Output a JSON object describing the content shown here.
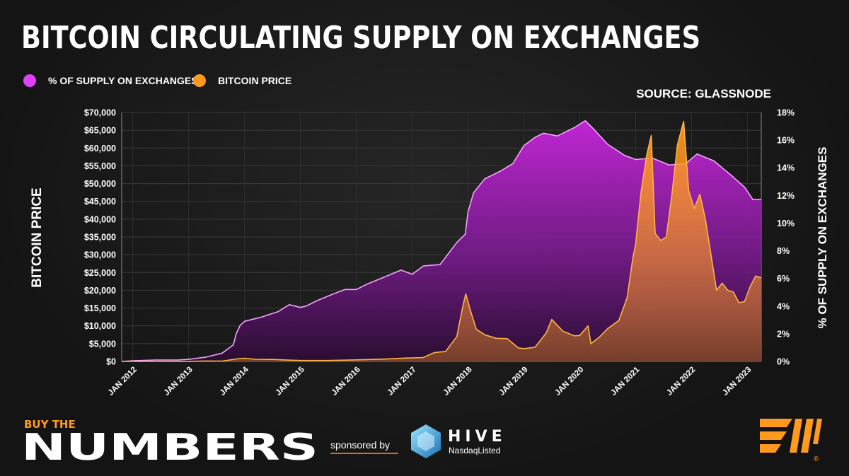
{
  "header": {
    "title": "BITCOIN CIRCULATING SUPPLY ON EXCHANGES",
    "source": "SOURCE: GLASSNODE"
  },
  "legend": {
    "items": [
      {
        "label": "% OF SUPPLY ON EXCHANGES",
        "color": "#e040fb",
        "icon": "circle-dot"
      },
      {
        "label": "BITCOIN PRICE",
        "color": "#ff9a1f",
        "icon": "circle-dot"
      }
    ]
  },
  "footer": {
    "brand_top": "BUY THE",
    "brand_bottom": "NUMBERS",
    "sponsored_by": "sponsored by",
    "sponsor_name": "HIVE",
    "sponsor_sub": "NasdaqListed",
    "logo_icon": "bitcoin-magazine-logo",
    "registered": "®"
  },
  "chart_data": {
    "type": "area",
    "title": "BITCOIN CIRCULATING SUPPLY ON EXCHANGES",
    "ylabel_left": "BITCOIN PRICE",
    "ylabel_right": "% OF SUPPLY ON EXCHANGES",
    "ylim_left": [
      0,
      70000
    ],
    "ylim_right": [
      0,
      18
    ],
    "y_ticks_left": [
      "$0",
      "$5,000",
      "$10,000",
      "$15,000",
      "$20,000",
      "$25,000",
      "$30,000",
      "$35,000",
      "$40,000",
      "$45,000",
      "$50,000",
      "$55,000",
      "$60,000",
      "$65,000",
      "$70,000"
    ],
    "y_ticks_right": [
      "0%",
      "2%",
      "4%",
      "6%",
      "8%",
      "10%",
      "12%",
      "14%",
      "16%",
      "18%"
    ],
    "x_ticks": [
      "JAN 2012",
      "JAN 2013",
      "JAN 2014",
      "JAN 2015",
      "JAN 2016",
      "JAN 2017",
      "JAN 2018",
      "JAN 2019",
      "JAN 2020",
      "JAN 2021",
      "JAN 2022",
      "JAN 2023"
    ],
    "xlim": [
      2011.8,
      2023.25
    ],
    "grid": true,
    "series": [
      {
        "name": "% OF SUPPLY ON EXCHANGES",
        "axis": "right",
        "color": "#e040fb",
        "x": [
          2011.8,
          2012.0,
          2012.4,
          2012.8,
          2013.0,
          2013.3,
          2013.6,
          2013.8,
          2013.85,
          2013.92,
          2014.0,
          2014.1,
          2014.3,
          2014.6,
          2014.8,
          2015.0,
          2015.1,
          2015.3,
          2015.6,
          2015.8,
          2016.0,
          2016.2,
          2016.5,
          2016.8,
          2017.0,
          2017.2,
          2017.5,
          2017.8,
          2017.95,
          2018.0,
          2018.1,
          2018.3,
          2018.6,
          2018.8,
          2019.0,
          2019.2,
          2019.35,
          2019.6,
          2019.9,
          2020.1,
          2020.25,
          2020.5,
          2020.8,
          2021.0,
          2021.3,
          2021.6,
          2021.9,
          2022.1,
          2022.4,
          2022.7,
          2022.95,
          2023.1,
          2023.25
        ],
        "values": [
          0.0,
          0.05,
          0.1,
          0.1,
          0.15,
          0.3,
          0.6,
          1.2,
          2.0,
          2.6,
          2.9,
          3.0,
          3.2,
          3.6,
          4.1,
          3.9,
          4.0,
          4.4,
          4.9,
          5.2,
          5.2,
          5.6,
          6.1,
          6.6,
          6.3,
          6.9,
          7.0,
          8.6,
          9.2,
          10.8,
          12.2,
          13.2,
          13.8,
          14.3,
          15.6,
          16.2,
          16.5,
          16.3,
          16.9,
          17.4,
          16.8,
          15.7,
          14.9,
          14.6,
          14.7,
          14.2,
          14.3,
          15.0,
          14.5,
          13.5,
          12.6,
          11.7,
          11.7
        ]
      },
      {
        "name": "BITCOIN PRICE",
        "axis": "left",
        "color": "#ff9a1f",
        "x": [
          2011.8,
          2012.0,
          2012.5,
          2013.0,
          2013.3,
          2013.6,
          2013.9,
          2014.0,
          2014.2,
          2014.5,
          2014.8,
          2015.0,
          2015.5,
          2016.0,
          2016.5,
          2016.9,
          2017.0,
          2017.2,
          2017.4,
          2017.6,
          2017.8,
          2017.9,
          2017.96,
          2018.05,
          2018.15,
          2018.3,
          2018.5,
          2018.7,
          2018.9,
          2019.0,
          2019.2,
          2019.4,
          2019.5,
          2019.7,
          2019.9,
          2020.0,
          2020.15,
          2020.2,
          2020.35,
          2020.5,
          2020.7,
          2020.85,
          2020.95,
          2021.0,
          2021.1,
          2021.2,
          2021.28,
          2021.35,
          2021.45,
          2021.55,
          2021.65,
          2021.75,
          2021.86,
          2021.95,
          2022.05,
          2022.15,
          2022.25,
          2022.35,
          2022.45,
          2022.55,
          2022.65,
          2022.75,
          2022.85,
          2022.95,
          2023.05,
          2023.15,
          2023.25
        ],
        "values": [
          0,
          5,
          10,
          20,
          120,
          100,
          800,
          900,
          600,
          550,
          350,
          250,
          260,
          430,
          650,
          950,
          1000,
          1100,
          2500,
          2800,
          7000,
          15000,
          19000,
          14000,
          9000,
          7500,
          6500,
          6400,
          3800,
          3600,
          4000,
          8000,
          11800,
          8500,
          7200,
          7300,
          10000,
          5000,
          6800,
          9200,
          11500,
          18000,
          29000,
          33000,
          48000,
          58000,
          63500,
          36000,
          34000,
          35000,
          47000,
          61000,
          67500,
          48000,
          43000,
          47000,
          40000,
          30000,
          20000,
          22000,
          20000,
          19500,
          16500,
          16800,
          21000,
          24000,
          23500
        ]
      }
    ]
  }
}
